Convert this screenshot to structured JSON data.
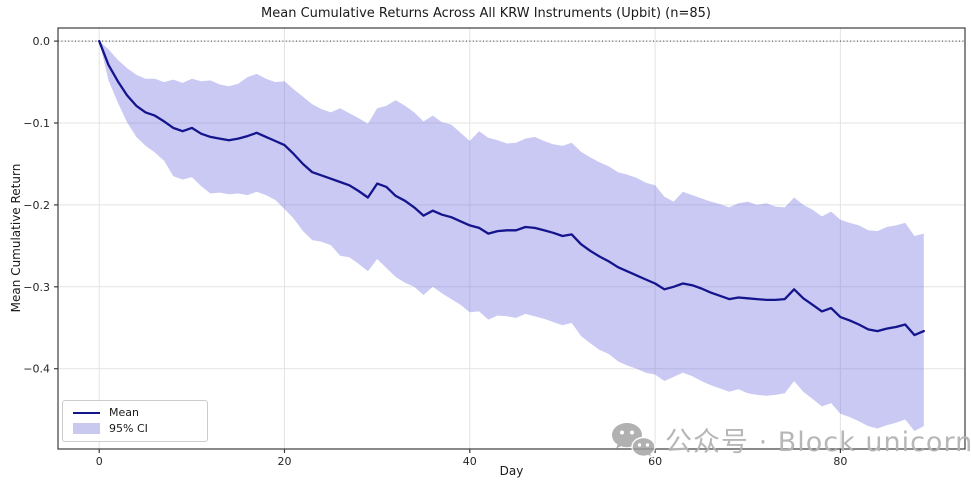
{
  "chart_data": {
    "type": "line",
    "title": "Mean Cumulative Returns Across All KRW Instruments (Upbit) (n=85)",
    "xlabel": "Day",
    "ylabel": "Mean Cumulative Return",
    "xlim": [
      -4.45,
      93.45
    ],
    "ylim": [
      -0.498,
      0.016
    ],
    "grid": true,
    "zero_line": 0.0,
    "xticks": {
      "values": [
        0,
        20,
        40,
        60,
        80
      ],
      "labels": [
        "0",
        "20",
        "40",
        "60",
        "80"
      ]
    },
    "yticks": {
      "values": [
        0.0,
        -0.1,
        -0.2,
        -0.3,
        -0.4
      ],
      "labels": [
        "0.0",
        "−0.1",
        "−0.2",
        "−0.3",
        "−0.4"
      ]
    },
    "x": [
      0,
      1,
      2,
      3,
      4,
      5,
      6,
      7,
      8,
      9,
      10,
      11,
      12,
      13,
      14,
      15,
      16,
      17,
      18,
      19,
      20,
      21,
      22,
      23,
      24,
      25,
      26,
      27,
      28,
      29,
      30,
      31,
      32,
      33,
      34,
      35,
      36,
      37,
      38,
      39,
      40,
      41,
      42,
      43,
      44,
      45,
      46,
      47,
      48,
      49,
      50,
      51,
      52,
      53,
      54,
      55,
      56,
      57,
      58,
      59,
      60,
      61,
      62,
      63,
      64,
      65,
      66,
      67,
      68,
      69,
      70,
      71,
      72,
      73,
      74,
      75,
      76,
      77,
      78,
      79,
      80,
      81,
      82,
      83,
      84,
      85,
      86,
      87,
      88,
      89
    ],
    "series": [
      {
        "name": "Mean",
        "values": [
          0.0,
          -0.029,
          -0.049,
          -0.066,
          -0.079,
          -0.087,
          -0.091,
          -0.098,
          -0.106,
          -0.11,
          -0.106,
          -0.113,
          -0.117,
          -0.119,
          -0.121,
          -0.119,
          -0.116,
          -0.112,
          -0.117,
          -0.122,
          -0.127,
          -0.138,
          -0.15,
          -0.16,
          -0.164,
          -0.168,
          -0.172,
          -0.176,
          -0.183,
          -0.191,
          -0.174,
          -0.178,
          -0.189,
          -0.195,
          -0.203,
          -0.213,
          -0.207,
          -0.212,
          -0.215,
          -0.22,
          -0.225,
          -0.228,
          -0.235,
          -0.232,
          -0.231,
          -0.231,
          -0.227,
          -0.228,
          -0.231,
          -0.234,
          -0.238,
          -0.236,
          -0.248,
          -0.256,
          -0.263,
          -0.269,
          -0.276,
          -0.281,
          -0.286,
          -0.291,
          -0.296,
          -0.303,
          -0.3,
          -0.296,
          -0.298,
          -0.302,
          -0.307,
          -0.311,
          -0.315,
          -0.313,
          -0.314,
          -0.315,
          -0.316,
          -0.316,
          -0.315,
          -0.303,
          -0.314,
          -0.322,
          -0.33,
          -0.326,
          -0.337,
          -0.341,
          -0.346,
          -0.352,
          -0.354,
          -0.351,
          -0.349,
          -0.346,
          -0.359,
          -0.354
        ]
      },
      {
        "name": "95% CI upper",
        "values": [
          0.0,
          -0.01,
          -0.023,
          -0.033,
          -0.041,
          -0.046,
          -0.046,
          -0.05,
          -0.047,
          -0.051,
          -0.046,
          -0.049,
          -0.048,
          -0.053,
          -0.055,
          -0.052,
          -0.044,
          -0.04,
          -0.046,
          -0.05,
          -0.049,
          -0.059,
          -0.068,
          -0.077,
          -0.083,
          -0.087,
          -0.082,
          -0.088,
          -0.094,
          -0.101,
          -0.082,
          -0.079,
          -0.072,
          -0.079,
          -0.087,
          -0.098,
          -0.091,
          -0.099,
          -0.102,
          -0.112,
          -0.122,
          -0.11,
          -0.118,
          -0.121,
          -0.125,
          -0.124,
          -0.119,
          -0.117,
          -0.122,
          -0.126,
          -0.128,
          -0.124,
          -0.135,
          -0.142,
          -0.148,
          -0.153,
          -0.16,
          -0.163,
          -0.167,
          -0.173,
          -0.176,
          -0.19,
          -0.196,
          -0.184,
          -0.188,
          -0.192,
          -0.196,
          -0.199,
          -0.203,
          -0.198,
          -0.196,
          -0.2,
          -0.198,
          -0.202,
          -0.203,
          -0.191,
          -0.2,
          -0.206,
          -0.214,
          -0.208,
          -0.218,
          -0.222,
          -0.225,
          -0.231,
          -0.232,
          -0.227,
          -0.225,
          -0.222,
          -0.238,
          -0.235
        ]
      },
      {
        "name": "95% CI lower",
        "values": [
          0.0,
          -0.048,
          -0.075,
          -0.099,
          -0.117,
          -0.128,
          -0.136,
          -0.146,
          -0.165,
          -0.169,
          -0.166,
          -0.177,
          -0.186,
          -0.185,
          -0.187,
          -0.186,
          -0.188,
          -0.184,
          -0.188,
          -0.194,
          -0.205,
          -0.217,
          -0.232,
          -0.243,
          -0.245,
          -0.249,
          -0.262,
          -0.264,
          -0.272,
          -0.281,
          -0.266,
          -0.277,
          -0.288,
          -0.295,
          -0.3,
          -0.31,
          -0.3,
          -0.308,
          -0.315,
          -0.322,
          -0.331,
          -0.33,
          -0.34,
          -0.335,
          -0.336,
          -0.338,
          -0.333,
          -0.336,
          -0.339,
          -0.343,
          -0.347,
          -0.344,
          -0.36,
          -0.369,
          -0.377,
          -0.382,
          -0.391,
          -0.396,
          -0.4,
          -0.405,
          -0.407,
          -0.415,
          -0.41,
          -0.405,
          -0.409,
          -0.415,
          -0.42,
          -0.424,
          -0.428,
          -0.425,
          -0.43,
          -0.432,
          -0.433,
          -0.432,
          -0.43,
          -0.415,
          -0.428,
          -0.437,
          -0.446,
          -0.442,
          -0.455,
          -0.459,
          -0.464,
          -0.47,
          -0.473,
          -0.469,
          -0.466,
          -0.462,
          -0.476,
          -0.47
        ]
      }
    ],
    "legend_position": "lower left"
  },
  "legend": {
    "items": [
      {
        "label": "Mean",
        "swatch": "line"
      },
      {
        "label": "95% CI",
        "swatch": "patch"
      }
    ]
  },
  "watermark": {
    "text": "公众号 · Block unicorn",
    "icon": "wechat-icon"
  },
  "colors": {
    "mean_line": "#14148c",
    "ci_fill": "#7070e2",
    "ci_fill_opacity": "0.38",
    "grid": "#e3e3e3",
    "zero_line": "#3a3a3a",
    "spine": "#3c3c3c",
    "tick_text": "#262626",
    "watermark": "#a9a9a9"
  }
}
